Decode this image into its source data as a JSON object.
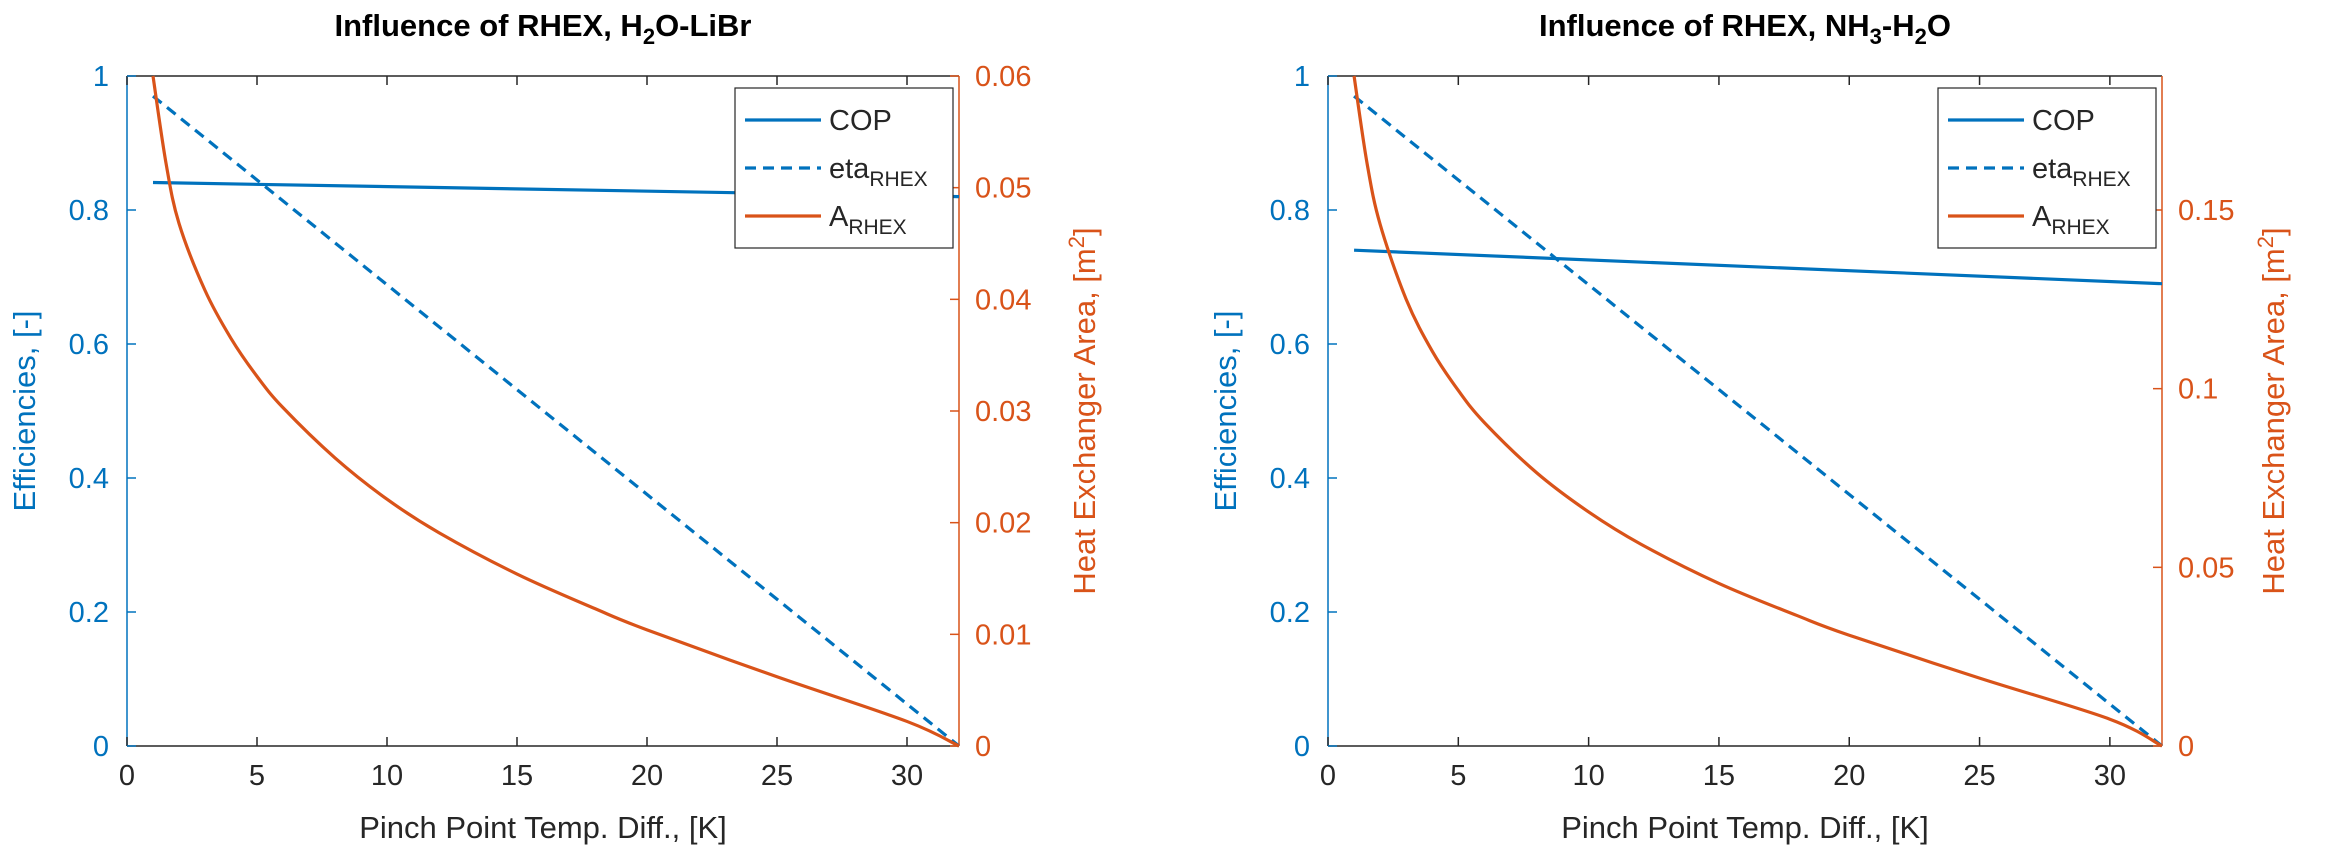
{
  "colors": {
    "left_axis": "#0072BD",
    "right_axis": "#D95319",
    "text": "#262626",
    "frame": "#262626"
  },
  "chart_data": [
    {
      "type": "line",
      "title_parts": [
        "Influence of RHEX, H",
        "2",
        "O-LiBr"
      ],
      "xlabel": "Pinch Point Temp. Diff., [K]",
      "ylabel_left": "Efficiencies, [-]",
      "ylabel_right_parts": [
        "Heat Exchanger Area, [m",
        "2",
        "]"
      ],
      "xlim": [
        0,
        32
      ],
      "xticks": [
        0,
        5,
        10,
        15,
        20,
        25,
        30
      ],
      "xtick_labels": [
        "0",
        "5",
        "10",
        "15",
        "20",
        "25",
        "30"
      ],
      "ylim_left": [
        0,
        1
      ],
      "yticks_left": [
        0,
        0.2,
        0.4,
        0.6,
        0.8,
        1
      ],
      "ytick_labels_left": [
        "0",
        "0.2",
        "0.4",
        "0.6",
        "0.8",
        "1"
      ],
      "ylim_right": [
        0,
        0.06
      ],
      "yticks_right": [
        0,
        0.01,
        0.02,
        0.03,
        0.04,
        0.05,
        0.06
      ],
      "ytick_labels_right": [
        "0",
        "0.01",
        "0.02",
        "0.03",
        "0.04",
        "0.05",
        "0.06"
      ],
      "legend_position": "top-right",
      "series": [
        {
          "name": "COP",
          "name_sub": "",
          "axis": "left",
          "style": "solid",
          "x": [
            1,
            32
          ],
          "y": [
            0.841,
            0.82
          ]
        },
        {
          "name": "eta",
          "name_sub": "RHEX",
          "axis": "left",
          "style": "dashed",
          "x": [
            1,
            32
          ],
          "y": [
            0.97,
            0
          ]
        },
        {
          "name": "A",
          "name_sub": "RHEX",
          "axis": "right",
          "style": "solid",
          "x": [
            1,
            1.5,
            2,
            3,
            4,
            5,
            6,
            8,
            10,
            12,
            15,
            18,
            20,
            25,
            30,
            32
          ],
          "y": [
            0.06,
            0.0522,
            0.0468,
            0.0408,
            0.0365,
            0.0331,
            0.0303,
            0.0258,
            0.0221,
            0.0191,
            0.0154,
            0.0123,
            0.0104,
            0.0062,
            0.0022,
            0
          ]
        }
      ]
    },
    {
      "type": "line",
      "title_parts": [
        "Influence of RHEX, NH",
        "3",
        "-H",
        "2",
        "O"
      ],
      "xlabel": "Pinch Point Temp. Diff., [K]",
      "ylabel_left": "Efficiencies, [-]",
      "ylabel_right_parts": [
        "Heat Exchanger Area, [m",
        "2",
        "]"
      ],
      "xlim": [
        0,
        32
      ],
      "xticks": [
        0,
        5,
        10,
        15,
        20,
        25,
        30
      ],
      "xtick_labels": [
        "0",
        "5",
        "10",
        "15",
        "20",
        "25",
        "30"
      ],
      "ylim_left": [
        0,
        1
      ],
      "yticks_left": [
        0,
        0.2,
        0.4,
        0.6,
        0.8,
        1
      ],
      "ytick_labels_left": [
        "0",
        "0.2",
        "0.4",
        "0.6",
        "0.8",
        "1"
      ],
      "ylim_right": [
        0,
        0.1875
      ],
      "yticks_right": [
        0,
        0.05,
        0.1,
        0.15
      ],
      "ytick_labels_right": [
        "0",
        "0.05",
        "0.1",
        "0.15"
      ],
      "legend_position": "top-right",
      "series": [
        {
          "name": "COP",
          "name_sub": "",
          "axis": "left",
          "style": "solid",
          "x": [
            1,
            32
          ],
          "y": [
            0.74,
            0.69
          ]
        },
        {
          "name": "eta",
          "name_sub": "RHEX",
          "axis": "left",
          "style": "dashed",
          "x": [
            1,
            32
          ],
          "y": [
            0.97,
            0
          ]
        },
        {
          "name": "A",
          "name_sub": "RHEX",
          "axis": "right",
          "style": "solid",
          "x": [
            1,
            1.5,
            2,
            3,
            4,
            5,
            6,
            8,
            10,
            12,
            15,
            18,
            20,
            25,
            30,
            32
          ],
          "y": [
            0.1875,
            0.163,
            0.146,
            0.125,
            0.1105,
            0.0995,
            0.0905,
            0.0765,
            0.0655,
            0.0565,
            0.0455,
            0.0365,
            0.031,
            0.019,
            0.0075,
            0
          ]
        }
      ]
    }
  ]
}
